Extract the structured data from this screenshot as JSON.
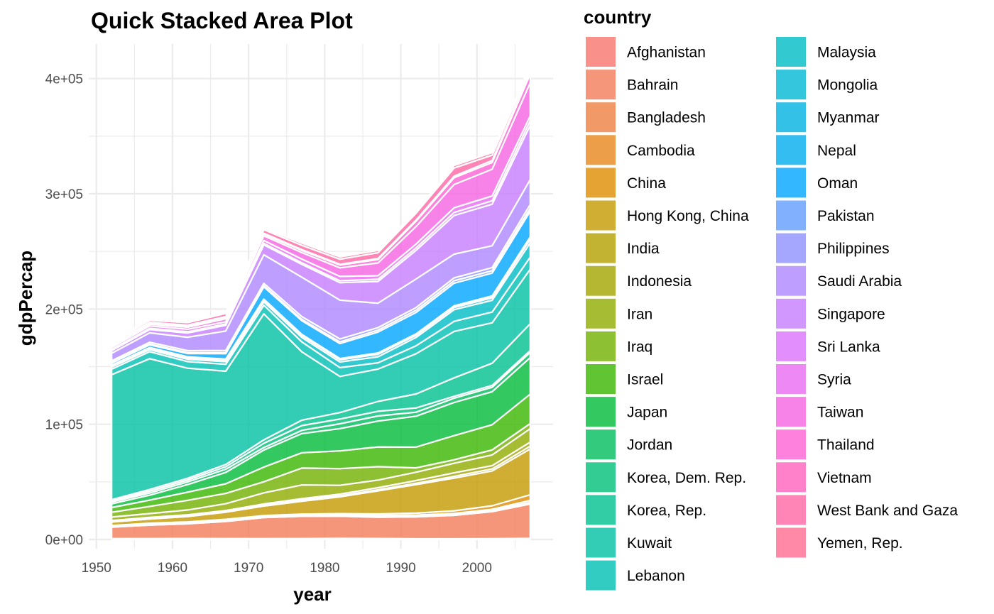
{
  "chart_data": {
    "type": "area",
    "stacked": true,
    "title": "Quick Stacked Area Plot",
    "xlabel": "year",
    "ylabel": "gdpPercap",
    "xlim": [
      1949,
      2010
    ],
    "ylim": [
      -8000,
      430000
    ],
    "x_ticks": [
      1950,
      1960,
      1970,
      1980,
      1990,
      2000
    ],
    "y_ticks": [
      0,
      100000,
      200000,
      300000,
      400000
    ],
    "y_tick_labels": [
      "0e+00",
      "1e+05",
      "2e+05",
      "3e+05",
      "4e+05"
    ],
    "grid": true,
    "legend_title": "country",
    "legend_position": "right",
    "x": [
      1952,
      1957,
      1962,
      1967,
      1972,
      1977,
      1982,
      1987,
      1992,
      1997,
      2002,
      2007
    ],
    "series": [
      {
        "name": "Afghanistan",
        "color": "#F8766D",
        "values": [
          779,
          821,
          853,
          836,
          740,
          786,
          978,
          852,
          649,
          635,
          727,
          975
        ]
      },
      {
        "name": "Bahrain",
        "color": "#F37B59",
        "values": [
          9867,
          11636,
          12753,
          14805,
          18269,
          19340,
          19211,
          18524,
          19035,
          20292,
          23404,
          29796
        ]
      },
      {
        "name": "Bangladesh",
        "color": "#ED8141",
        "values": [
          684,
          662,
          686,
          721,
          630,
          660,
          677,
          752,
          838,
          973,
          1136,
          1391
        ]
      },
      {
        "name": "Cambodia",
        "color": "#E7861B",
        "values": [
          368,
          434,
          497,
          523,
          422,
          525,
          624,
          684,
          682,
          734,
          896,
          1714
        ]
      },
      {
        "name": "China",
        "color": "#DF8C00",
        "values": [
          400,
          576,
          488,
          613,
          677,
          741,
          962,
          1379,
          1656,
          2289,
          3119,
          4959
        ]
      },
      {
        "name": "Hong Kong, China",
        "color": "#C49A00",
        "values": [
          3054,
          3629,
          4693,
          6198,
          8316,
          11186,
          14561,
          20038,
          24758,
          28378,
          30209,
          39725
        ]
      },
      {
        "name": "India",
        "color": "#B3A000",
        "values": [
          547,
          590,
          658,
          701,
          724,
          813,
          856,
          976,
          1164,
          1459,
          1747,
          2452
        ]
      },
      {
        "name": "Indonesia",
        "color": "#A2A500",
        "values": [
          750,
          858,
          849,
          762,
          1111,
          1383,
          1517,
          1748,
          2383,
          3119,
          2874,
          3541
        ]
      },
      {
        "name": "Iran",
        "color": "#8EAB00",
        "values": [
          3035,
          3291,
          4187,
          5906,
          9614,
          11889,
          7608,
          6643,
          7235,
          8263,
          9241,
          11606
        ]
      },
      {
        "name": "Iraq",
        "color": "#72B000",
        "values": [
          4130,
          6229,
          8342,
          8931,
          9576,
          14688,
          14517,
          11644,
          3746,
          3076,
          4391,
          4471
        ]
      },
      {
        "name": "Israel",
        "color": "#39B600",
        "values": [
          4086,
          5386,
          7106,
          8394,
          12787,
          13306,
          15367,
          17122,
          18051,
          20897,
          21905,
          25523
        ]
      },
      {
        "name": "Japan",
        "color": "#00BA38",
        "values": [
          3217,
          4318,
          6577,
          9847,
          14779,
          16610,
          19384,
          22376,
          26825,
          28817,
          28605,
          31656
        ]
      },
      {
        "name": "Jordan",
        "color": "#00BD5C",
        "values": [
          1547,
          1886,
          2348,
          2742,
          2110,
          2852,
          4162,
          4449,
          3431,
          3645,
          3845,
          4519
        ]
      },
      {
        "name": "Korea, Dem. Rep.",
        "color": "#00C078",
        "values": [
          1088,
          1571,
          1622,
          2144,
          3702,
          4106,
          4107,
          4106,
          3726,
          1691,
          1647,
          1593
        ]
      },
      {
        "name": "Korea, Rep.",
        "color": "#00C18E",
        "values": [
          1031,
          1488,
          1536,
          2029,
          3031,
          4657,
          5623,
          8533,
          12104,
          15994,
          19234,
          23348
        ]
      },
      {
        "name": "Kuwait",
        "color": "#00C1A2",
        "values": [
          108382,
          113523,
          95458,
          80895,
          109348,
          59265,
          31354,
          28118,
          34933,
          40301,
          35110,
          47307
        ]
      },
      {
        "name": "Lebanon",
        "color": "#00BFB4",
        "values": [
          4835,
          6090,
          5715,
          6006,
          7486,
          8660,
          7641,
          5377,
          6891,
          8755,
          9314,
          10461
        ]
      },
      {
        "name": "Malaysia",
        "color": "#00BCC5",
        "values": [
          1831,
          1810,
          2037,
          2278,
          2849,
          3828,
          4921,
          5249,
          7277,
          10132,
          10207,
          12452
        ]
      },
      {
        "name": "Mongolia",
        "color": "#00B8D4",
        "values": [
          787,
          912,
          1056,
          1226,
          1421,
          1648,
          1842,
          2153,
          1785,
          1902,
          2141,
          3096
        ]
      },
      {
        "name": "Myanmar",
        "color": "#00B2E2",
        "values": [
          331,
          350,
          388,
          349,
          357,
          371,
          424,
          385,
          347,
          415,
          611,
          944
        ]
      },
      {
        "name": "Nepal",
        "color": "#00ACEE",
        "values": [
          546,
          598,
          652,
          676,
          674,
          695,
          719,
          776,
          897,
          1011,
          1057,
          1091
        ]
      },
      {
        "name": "Oman",
        "color": "#00A5FF",
        "values": [
          1828,
          2243,
          2925,
          4721,
          10618,
          11848,
          12955,
          18115,
          18617,
          19702,
          19775,
          22316
        ]
      },
      {
        "name": "Pakistan",
        "color": "#619CFF",
        "values": [
          685,
          747,
          804,
          942,
          1050,
          1176,
          1443,
          1705,
          1972,
          2050,
          2093,
          2606
        ]
      },
      {
        "name": "Philippines",
        "color": "#8F91FF",
        "values": [
          1273,
          1548,
          1650,
          1814,
          1989,
          2373,
          2603,
          2189,
          2279,
          2537,
          2651,
          3190
        ]
      },
      {
        "name": "Saudi Arabia",
        "color": "#AE87FF",
        "values": [
          6460,
          8157,
          11627,
          16903,
          24837,
          34168,
          33693,
          21199,
          24841,
          20586,
          19014,
          21655
        ]
      },
      {
        "name": "Singapore",
        "color": "#C77CFF",
        "values": [
          2316,
          2843,
          3675,
          4978,
          8598,
          11210,
          15169,
          18862,
          24770,
          33519,
          36023,
          47143
        ]
      },
      {
        "name": "Sri Lanka",
        "color": "#DB72FB",
        "values": [
          1083,
          1072,
          1074,
          1136,
          1213,
          1349,
          1648,
          1877,
          2154,
          2665,
          3015,
          3970
        ]
      },
      {
        "name": "Syria",
        "color": "#EA6AF1",
        "values": [
          1644,
          2118,
          2194,
          1882,
          2572,
          3196,
          3762,
          3116,
          3341,
          4014,
          4091,
          4185
        ]
      },
      {
        "name": "Taiwan",
        "color": "#F564E3",
        "values": [
          1207,
          1508,
          1823,
          2644,
          4063,
          5597,
          7426,
          11054,
          15216,
          20207,
          23235,
          28718
        ]
      },
      {
        "name": "Thailand",
        "color": "#FC61D5",
        "values": [
          757,
          793,
          1002,
          1296,
          1524,
          1961,
          2393,
          2982,
          4616,
          5852,
          5913,
          7458
        ]
      },
      {
        "name": "Vietnam",
        "color": "#FF62BC",
        "values": [
          605,
          676,
          772,
          637,
          700,
          714,
          707,
          821,
          989,
          1386,
          1764,
          2442
        ]
      },
      {
        "name": "West Bank and Gaza",
        "color": "#FF67A4",
        "values": [
          1516,
          1827,
          2199,
          2650,
          3133,
          3683,
          4337,
          5107,
          6017,
          7110,
          4516,
          3026
        ]
      },
      {
        "name": "Yemen, Rep.",
        "color": "#FF6C91",
        "values": [
          782,
          805,
          826,
          863,
          1266,
          1830,
          1978,
          1972,
          1879,
          2117,
          2235,
          2281
        ]
      }
    ]
  }
}
